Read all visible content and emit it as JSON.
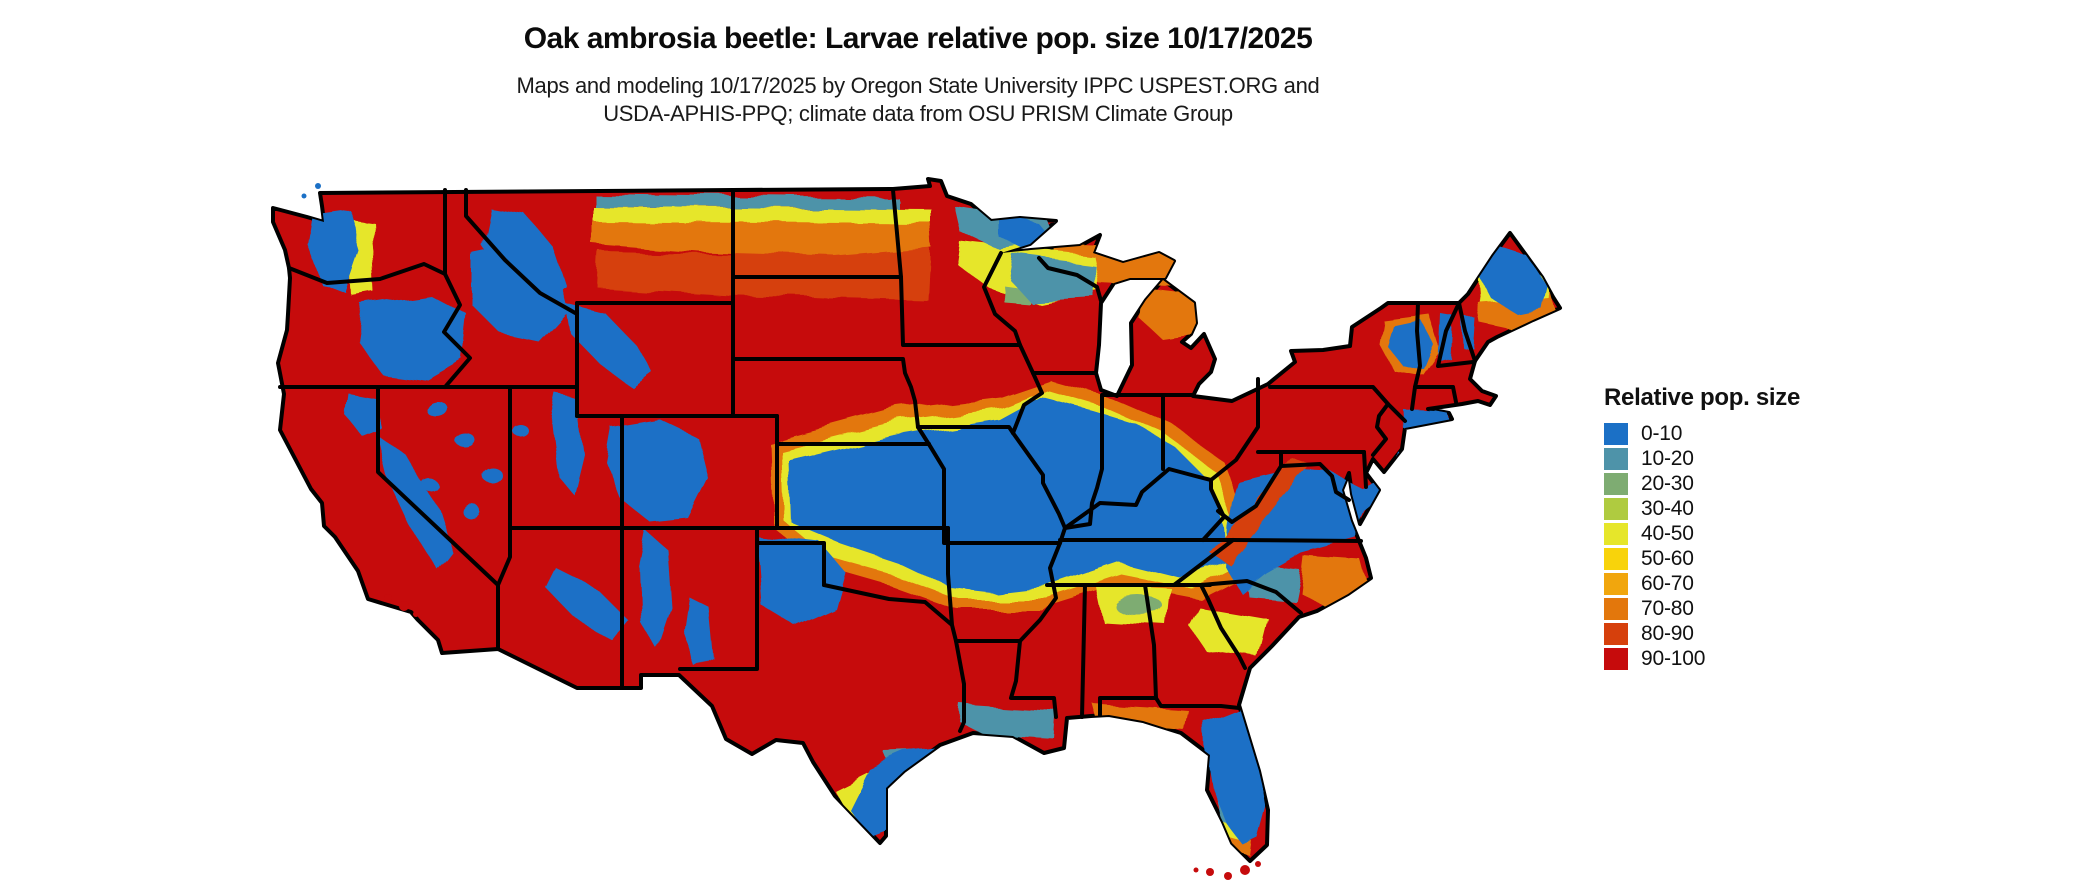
{
  "title": "Oak ambrosia beetle: Larvae relative pop. size 10/17/2025",
  "subtitle_line1": "Maps and modeling 10/17/2025 by Oregon State University IPPC USPEST.ORG and",
  "subtitle_line2": "USDA-APHIS-PPQ; climate data from OSU PRISM Climate Group",
  "legend": {
    "title": "Relative pop. size",
    "bins": [
      {
        "label": "0-10",
        "color": "#1B70C6"
      },
      {
        "label": "10-20",
        "color": "#4E93A9"
      },
      {
        "label": "20-30",
        "color": "#7EAC72"
      },
      {
        "label": "30-40",
        "color": "#AFCB40"
      },
      {
        "label": "40-50",
        "color": "#E6E62A"
      },
      {
        "label": "50-60",
        "color": "#F8D30B"
      },
      {
        "label": "60-70",
        "color": "#F1A60D"
      },
      {
        "label": "70-80",
        "color": "#E3770C"
      },
      {
        "label": "80-90",
        "color": "#D6400C"
      },
      {
        "label": "90-100",
        "color": "#C60B0C"
      }
    ]
  },
  "map": {
    "region": "Continental United States",
    "state_border_color": "#000000",
    "water_background_color": "#FFFFFF",
    "dominant_bin": "90-100"
  }
}
